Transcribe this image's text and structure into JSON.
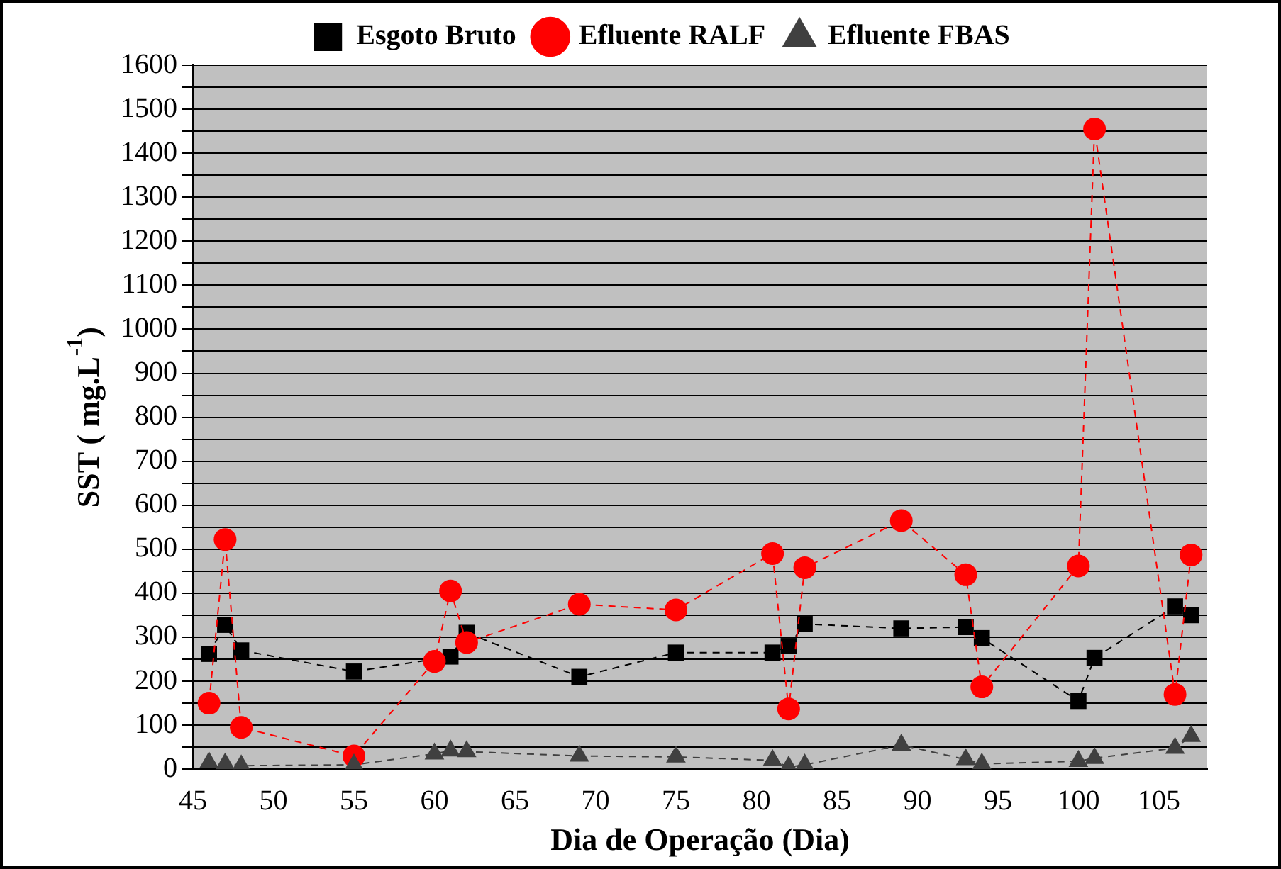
{
  "chart_data": {
    "type": "line",
    "xlabel": "Dia de Operação (Dia)",
    "ylabel": "SST ( mg.L$^{-1}$)",
    "xlim": [
      45,
      108
    ],
    "xticks": [
      45,
      50,
      55,
      60,
      65,
      70,
      75,
      80,
      85,
      90,
      95,
      100,
      105
    ],
    "ylim": [
      0,
      1600
    ],
    "yticks": [
      0,
      100,
      200,
      300,
      400,
      500,
      600,
      700,
      800,
      900,
      1000,
      1100,
      1200,
      1300,
      1400,
      1500,
      1600
    ],
    "grid": "y",
    "legend": "top",
    "line_style": "dashed",
    "series": [
      {
        "name": "Esgoto Bruto",
        "color": "#000000",
        "marker": "square",
        "x": [
          46,
          47,
          48,
          55,
          61,
          62,
          69,
          75,
          81,
          82,
          83,
          89,
          93,
          94,
          100,
          101,
          106,
          107
        ],
        "values": [
          262,
          328,
          270,
          222,
          256,
          310,
          210,
          265,
          265,
          280,
          330,
          320,
          323,
          298,
          155,
          253,
          370,
          350
        ]
      },
      {
        "name": "Efluente RALF",
        "color": "#ff0000",
        "marker": "circle",
        "x": [
          46,
          47,
          48,
          55,
          60,
          61,
          62,
          69,
          75,
          81,
          82,
          83,
          89,
          93,
          94,
          100,
          101,
          106,
          107
        ],
        "values": [
          150,
          522,
          95,
          30,
          245,
          405,
          288,
          375,
          362,
          490,
          137,
          458,
          565,
          442,
          187,
          462,
          1455,
          170,
          487
        ]
      },
      {
        "name": "Efluente FBAS",
        "color": "#404040",
        "marker": "triangle",
        "x": [
          46,
          47,
          48,
          55,
          60,
          61,
          62,
          69,
          75,
          81,
          82,
          83,
          89,
          93,
          94,
          100,
          101,
          106,
          107
        ],
        "values": [
          15,
          12,
          8,
          10,
          35,
          42,
          40,
          30,
          28,
          20,
          5,
          10,
          55,
          22,
          12,
          18,
          25,
          48,
          75
        ]
      }
    ]
  }
}
